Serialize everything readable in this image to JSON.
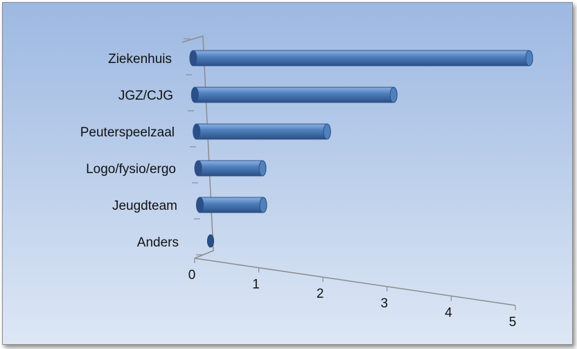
{
  "chart_data": {
    "type": "bar",
    "orientation": "horizontal",
    "style": "3d-cylinder",
    "title": "",
    "xlabel": "",
    "ylabel": "",
    "categories": [
      "Ziekenhuis",
      "JGZ/CJG",
      "Peuterspeelzaal",
      "Logo/fysio/ergo",
      "Jeugdteam",
      "Anders"
    ],
    "values": [
      5,
      3,
      2,
      1,
      1,
      0
    ],
    "xlim": [
      0,
      5
    ],
    "x_ticks": [
      "0",
      "1",
      "2",
      "3",
      "4",
      "5"
    ],
    "grid": false,
    "legend": "none",
    "colors": {
      "bar": "#4f81bd",
      "bar_dark": "#2b4f86",
      "bar_light": "#8fb2e3",
      "axis": "#8c8c8c"
    }
  }
}
